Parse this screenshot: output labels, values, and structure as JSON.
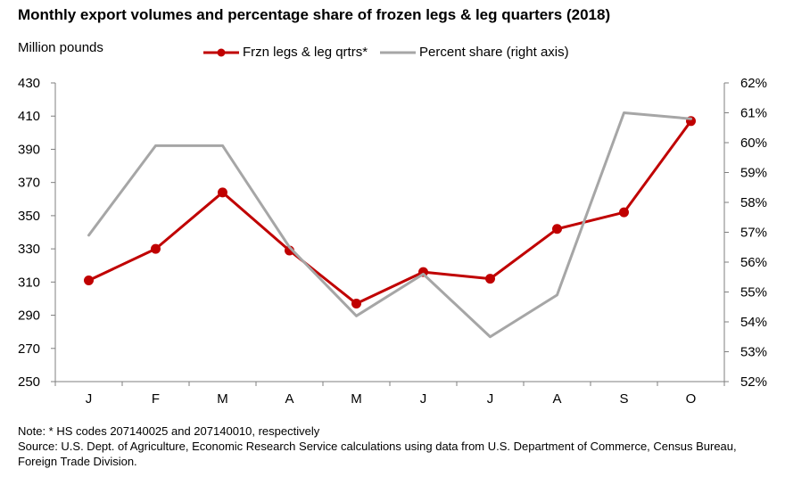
{
  "chart_data": {
    "type": "line",
    "title": "Monthly export volumes and percentage share of frozen legs & leg quarters (2018)",
    "ylabel": "Million pounds",
    "categories": [
      "J",
      "F",
      "M",
      "A",
      "M",
      "J",
      "J",
      "A",
      "S",
      "O"
    ],
    "ylim": [
      250,
      430
    ],
    "yticks": [
      "430",
      "410",
      "390",
      "370",
      "350",
      "330",
      "310",
      "290",
      "270",
      "250"
    ],
    "y2lim": [
      52,
      62
    ],
    "y2ticks": [
      "62%",
      "61%",
      "60%",
      "59%",
      "58%",
      "57%",
      "56%",
      "55%",
      "54%",
      "53%",
      "52%"
    ],
    "series": [
      {
        "name": "Frzn legs & leg qrtrs*",
        "axis": "left",
        "color": "#c00000",
        "markers": true,
        "values": [
          311,
          330,
          364,
          329,
          297,
          316,
          312,
          342,
          352,
          407
        ]
      },
      {
        "name": "Percent share (right axis)",
        "axis": "right",
        "color": "#a6a6a6",
        "markers": false,
        "values": [
          56.9,
          59.9,
          59.9,
          56.5,
          54.2,
          55.6,
          53.5,
          54.9,
          61.0,
          60.8
        ]
      }
    ],
    "legend_position": "top",
    "grid": false
  },
  "notes": {
    "note": "Note: * HS codes 207140025 and 207140010, respectively",
    "source": "Source: U.S. Dept. of Agriculture, Economic Research Service calculations using data from U.S. Department of Commerce, Census Bureau, Foreign Trade Division."
  }
}
